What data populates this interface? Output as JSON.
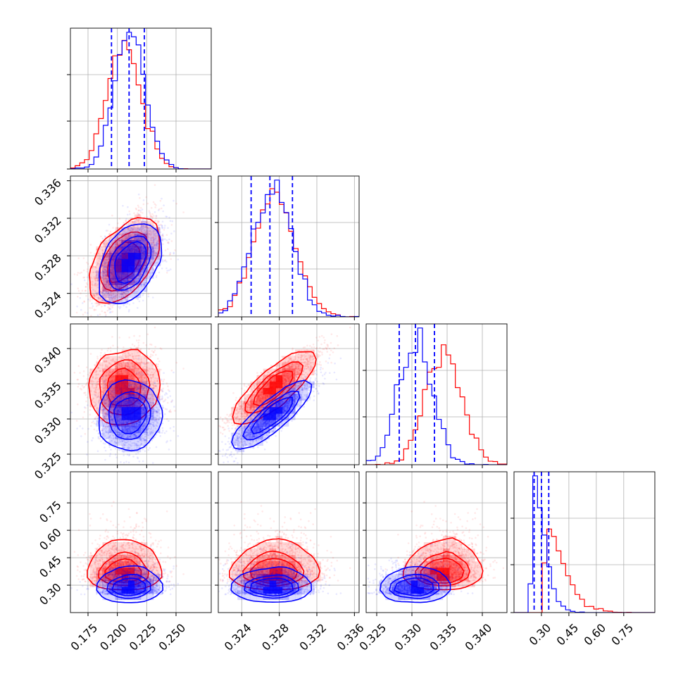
{
  "colors": {
    "red": "#ff0000",
    "blue": "#0000ff",
    "background": "#ffffff",
    "grid": "#b0b0b0"
  },
  "chart_data": {
    "type": "corner",
    "grid": true,
    "params": [
      {
        "range": [
          0.16,
          0.28
        ],
        "ticks": [
          0.175,
          0.2,
          0.225,
          0.25
        ],
        "tick_labels": [
          "0.175",
          "0.200",
          "0.225",
          "0.250"
        ]
      },
      {
        "range": [
          0.3215,
          0.3365
        ],
        "ticks": [
          0.324,
          0.328,
          0.332,
          0.336
        ],
        "tick_labels": [
          "0.324",
          "0.328",
          "0.332",
          "0.336"
        ]
      },
      {
        "range": [
          0.3235,
          0.3435
        ],
        "ticks": [
          0.325,
          0.33,
          0.335,
          0.34
        ],
        "tick_labels": [
          "0.325",
          "0.330",
          "0.335",
          "0.340"
        ]
      },
      {
        "range": [
          0.15,
          0.92
        ],
        "ticks": [
          0.3,
          0.45,
          0.6,
          0.75
        ],
        "tick_labels": [
          "0.30",
          "0.45",
          "0.60",
          "0.75"
        ]
      }
    ],
    "series": [
      {
        "color": "#ff0000",
        "means": [
          0.206,
          0.3275,
          0.3345,
          0.4
        ],
        "sigmas": [
          0.0145,
          0.0022,
          0.0026,
          0.065
        ],
        "correlations": [
          [
            0,
            1,
            0.5
          ],
          [
            0,
            2,
            0.05
          ],
          [
            1,
            2,
            0.85
          ],
          [
            0,
            3,
            0.05
          ],
          [
            1,
            3,
            0.05
          ],
          [
            2,
            3,
            0.1
          ]
        ],
        "quantiles": []
      },
      {
        "color": "#0000ff",
        "means": [
          0.21,
          0.3272,
          0.3305,
          0.3
        ],
        "sigmas": [
          0.013,
          0.0021,
          0.0024,
          0.04
        ],
        "correlations": [
          [
            0,
            1,
            0.45
          ],
          [
            0,
            2,
            0.05
          ],
          [
            1,
            2,
            0.9
          ],
          [
            0,
            3,
            0.05
          ],
          [
            1,
            3,
            0.05
          ],
          [
            2,
            3,
            0.1
          ]
        ],
        "quantiles": [
          [
            0.195,
            0.21,
            0.223
          ],
          [
            0.325,
            0.327,
            0.3294
          ],
          [
            0.3282,
            0.3305,
            0.3332
          ],
          [
            0.26,
            0.3,
            0.34
          ]
        ]
      }
    ]
  }
}
